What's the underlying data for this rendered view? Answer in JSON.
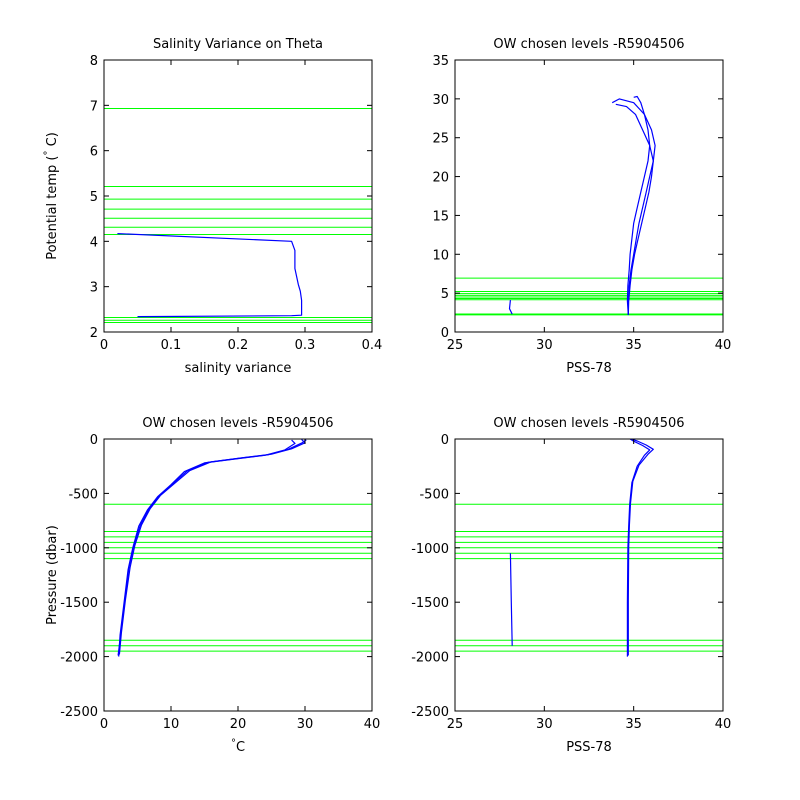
{
  "chart_data": [
    {
      "type": "line",
      "title": "Salinity Variance on Theta",
      "xlabel": "salinity variance",
      "ylabel": "Potential temp (°C)",
      "ylabel_main": "Potential temp (",
      "ylabel_degree": "°",
      "ylabel_unit": " C)",
      "xlim": [
        0,
        0.4
      ],
      "ylim": [
        2,
        8
      ],
      "xticks": [
        0,
        0.1,
        0.2,
        0.3,
        0.4
      ],
      "xtick_labels": [
        "0",
        "0.1",
        "0.2",
        "0.3",
        "0.4"
      ],
      "yticks": [
        2,
        3,
        4,
        5,
        6,
        7,
        8
      ],
      "ytick_labels": [
        "2",
        "3",
        "4",
        "5",
        "6",
        "7",
        "8"
      ],
      "grid": false,
      "series": [
        {
          "color": "#0000ff",
          "x": [
            0.02,
            0.28,
            0.285,
            0.285,
            0.29,
            0.293,
            0.295,
            0.295,
            0.28,
            0.05
          ],
          "y": [
            4.17,
            4.0,
            3.8,
            3.4,
            3.05,
            2.9,
            2.7,
            2.37,
            2.36,
            2.34
          ]
        }
      ],
      "reference_lines": {
        "color": "#00ff00",
        "orientation": "horizontal",
        "values": [
          6.93,
          5.21,
          4.93,
          4.71,
          4.51,
          4.31,
          4.15,
          2.32,
          2.26,
          2.21
        ]
      }
    },
    {
      "type": "line",
      "title": "OW chosen levels -R5904506",
      "xlabel": "PSS-78",
      "ylabel": "",
      "xlim": [
        25,
        40
      ],
      "ylim": [
        0,
        35
      ],
      "xticks": [
        25,
        30,
        35,
        40
      ],
      "xtick_labels": [
        "25",
        "30",
        "35",
        "40"
      ],
      "yticks": [
        0,
        5,
        10,
        15,
        20,
        25,
        30,
        35
      ],
      "ytick_labels": [
        "0",
        "5",
        "10",
        "15",
        "20",
        "25",
        "30",
        "35"
      ],
      "grid": false,
      "series": [
        {
          "color": "#0000ff",
          "x": [
            34.7,
            34.65,
            34.68,
            34.75,
            34.8,
            34.9,
            35.0,
            35.2,
            35.4,
            35.6,
            35.8,
            35.9,
            35.8,
            35.6,
            35.4,
            35.2,
            35.0
          ],
          "y": [
            2.2,
            4.0,
            6.0,
            8.0,
            10.0,
            12.0,
            14.0,
            16.0,
            18.0,
            20.0,
            22.0,
            24.0,
            26.0,
            28.0,
            29.5,
            30.3,
            30.2
          ]
        },
        {
          "color": "#0000ff",
          "x": [
            34.7,
            34.7,
            34.75,
            34.85,
            35.0,
            35.15,
            35.3,
            35.5,
            35.7,
            35.9,
            36.1,
            36.2,
            36.0,
            35.6,
            35.0,
            34.2,
            33.8
          ],
          "y": [
            2.2,
            4.0,
            6.0,
            8.0,
            10.0,
            12.0,
            14.0,
            16.0,
            18.0,
            20.0,
            22.0,
            24.0,
            26.0,
            28.0,
            29.5,
            30.0,
            29.5
          ]
        },
        {
          "color": "#0000ff",
          "x": [
            34.7,
            34.72,
            34.8,
            34.9,
            35.05,
            35.25,
            35.45,
            35.65,
            35.85,
            36.0,
            36.1,
            35.9,
            35.5,
            35.1,
            34.6,
            34.0
          ],
          "y": [
            2.2,
            4.0,
            6.0,
            8.0,
            10.0,
            12.0,
            14.0,
            16.0,
            18.0,
            20.0,
            22.0,
            24.0,
            26.0,
            28.0,
            29.0,
            29.3
          ]
        },
        {
          "color": "#0000ff",
          "x": [
            28.1,
            28.05,
            28.2
          ],
          "y": [
            4.1,
            3.0,
            2.3
          ]
        }
      ],
      "reference_lines": {
        "color": "#00ff00",
        "orientation": "horizontal",
        "values": [
          6.93,
          5.21,
          4.93,
          4.71,
          4.51,
          4.31,
          4.15,
          2.32,
          2.26,
          2.21
        ]
      }
    },
    {
      "type": "line",
      "title": "OW chosen levels -R5904506",
      "xlabel": "°C",
      "xlabel_degree": "°",
      "xlabel_unit": "C",
      "ylabel": "Pressure (dbar)",
      "xlim": [
        0,
        40
      ],
      "ylim": [
        -2500,
        0
      ],
      "xticks": [
        0,
        10,
        20,
        30,
        40
      ],
      "xtick_labels": [
        "0",
        "10",
        "20",
        "30",
        "40"
      ],
      "yticks": [
        -2500,
        -2000,
        -1500,
        -1000,
        -500,
        0
      ],
      "ytick_labels": [
        "-2500",
        "-2000",
        "-1500",
        "-1000",
        "-500",
        "0"
      ],
      "grid": false,
      "series": [
        {
          "color": "#0000ff",
          "x": [
            2.2,
            2.4,
            3.0,
            3.6,
            4.3,
            5.2,
            6.5,
            8.0,
            10.0,
            12.0,
            15.0,
            20.0,
            24.0,
            27.0,
            28.5,
            28.0
          ],
          "y": [
            -2000,
            -1800,
            -1500,
            -1200,
            -1000,
            -800,
            -650,
            -530,
            -420,
            -300,
            -220,
            -180,
            -150,
            -100,
            -40,
            -10
          ]
        },
        {
          "color": "#0000ff",
          "x": [
            2.3,
            2.6,
            3.2,
            3.9,
            4.6,
            5.6,
            6.9,
            8.4,
            10.5,
            12.8,
            16.0,
            21.0,
            25.0,
            28.0,
            30.0,
            29.5
          ],
          "y": [
            -1980,
            -1780,
            -1480,
            -1180,
            -980,
            -790,
            -640,
            -520,
            -410,
            -290,
            -210,
            -170,
            -140,
            -90,
            -35,
            -5
          ]
        },
        {
          "color": "#0000ff",
          "x": [
            2.1,
            2.5,
            3.1,
            3.7,
            4.4,
            5.4,
            6.7,
            8.2,
            10.2,
            12.4,
            15.5,
            20.5,
            24.5,
            27.5,
            29.5,
            30.2
          ],
          "y": [
            -1990,
            -1790,
            -1490,
            -1190,
            -990,
            -795,
            -645,
            -525,
            -415,
            -295,
            -215,
            -175,
            -145,
            -95,
            -38,
            -8
          ]
        }
      ],
      "reference_lines": {
        "color": "#00ff00",
        "orientation": "horizontal",
        "values": [
          -600,
          -850,
          -900,
          -950,
          -1000,
          -1050,
          -1100,
          -1850,
          -1900,
          -1950
        ]
      }
    },
    {
      "type": "line",
      "title": "OW chosen levels -R5904506",
      "xlabel": "PSS-78",
      "ylabel": "",
      "xlim": [
        25,
        40
      ],
      "ylim": [
        -2500,
        0
      ],
      "xticks": [
        25,
        30,
        35,
        40
      ],
      "xtick_labels": [
        "25",
        "30",
        "35",
        "40"
      ],
      "yticks": [
        -2500,
        -2000,
        -1500,
        -1000,
        -500,
        0
      ],
      "ytick_labels": [
        "-2500",
        "-2000",
        "-1500",
        "-1000",
        "-500",
        "0"
      ],
      "grid": false,
      "series": [
        {
          "color": "#0000ff",
          "x": [
            34.65,
            34.65,
            34.68,
            34.72,
            34.78,
            34.9,
            35.2,
            35.6,
            35.9,
            35.5,
            35.0,
            34.8
          ],
          "y": [
            -2000,
            -1500,
            -1000,
            -800,
            -600,
            -400,
            -250,
            -150,
            -100,
            -60,
            -20,
            0
          ]
        },
        {
          "color": "#0000ff",
          "x": [
            34.7,
            34.7,
            34.72,
            34.76,
            34.82,
            34.95,
            35.3,
            35.8,
            36.1,
            35.7,
            35.2,
            34.9
          ],
          "y": [
            -1990,
            -1490,
            -990,
            -790,
            -590,
            -390,
            -240,
            -140,
            -95,
            -55,
            -18,
            -2
          ]
        },
        {
          "color": "#0000ff",
          "x": [
            28.1,
            28.15,
            28.2
          ],
          "y": [
            -1050,
            -1500,
            -1900
          ]
        }
      ],
      "reference_lines": {
        "color": "#00ff00",
        "orientation": "horizontal",
        "values": [
          -600,
          -850,
          -900,
          -950,
          -1000,
          -1050,
          -1100,
          -1850,
          -1900,
          -1950
        ]
      }
    }
  ]
}
